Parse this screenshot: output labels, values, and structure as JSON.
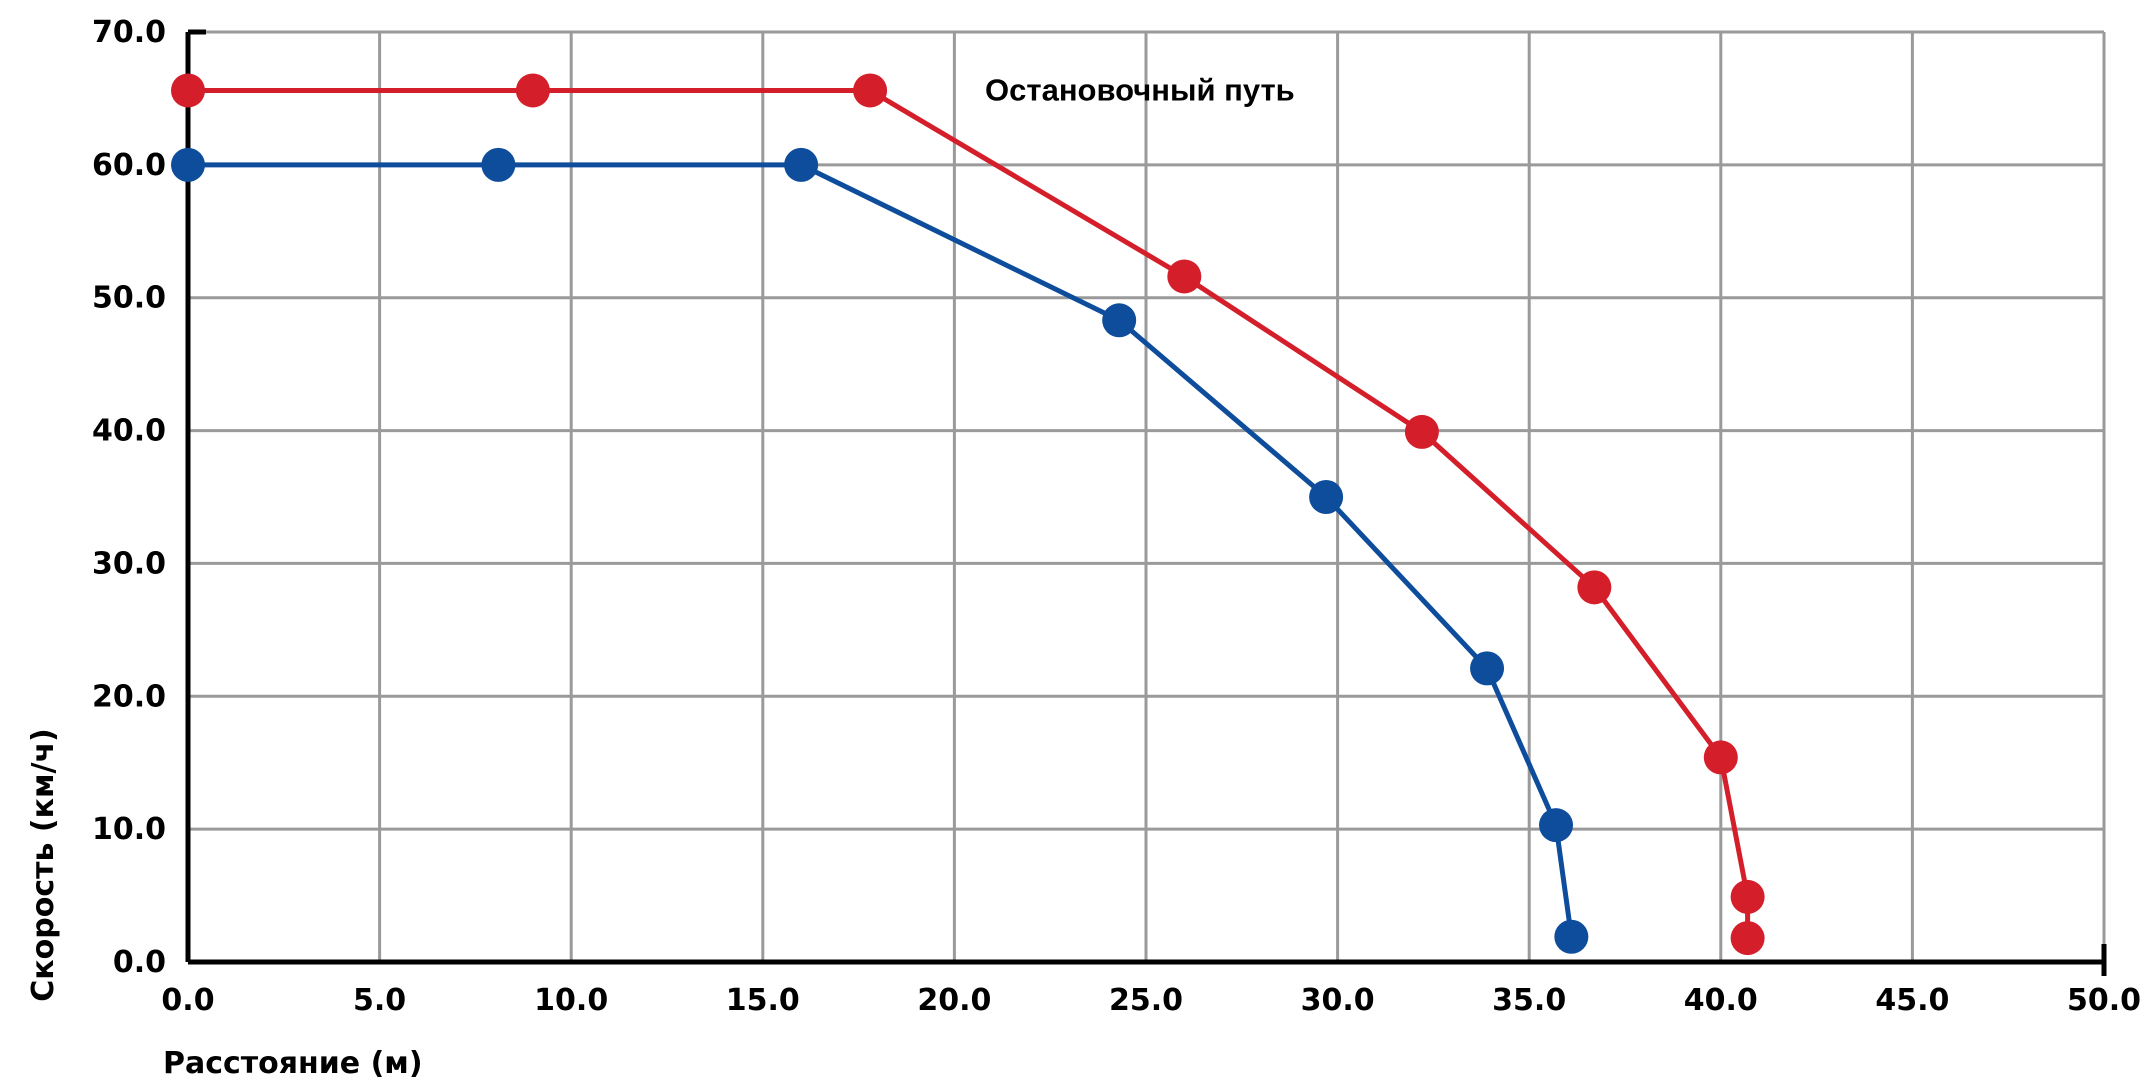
{
  "chart_data": {
    "type": "line",
    "title": "",
    "xlabel": "Расстояние (м)",
    "ylabel": "Скорость (км/ч)",
    "xlim": [
      0,
      50
    ],
    "ylim": [
      0,
      70
    ],
    "x_ticks": [
      "0.0",
      "5.0",
      "10.0",
      "15.0",
      "20.0",
      "25.0",
      "30.0",
      "35.0",
      "40.0",
      "45.0",
      "50.0"
    ],
    "y_ticks": [
      "0.0",
      "10.0",
      "20.0",
      "30.0",
      "40.0",
      "50.0",
      "60.0",
      "70.0"
    ],
    "grid": true,
    "annotations": [
      {
        "text": "Остановочный путь",
        "x": 20.8,
        "y": 65.6
      }
    ],
    "series": [
      {
        "color": "#d41f2b",
        "points": [
          [
            0.0,
            65.6
          ],
          [
            9.0,
            65.6
          ],
          [
            17.8,
            65.6
          ],
          [
            26.0,
            51.6
          ],
          [
            32.2,
            39.9
          ],
          [
            36.7,
            28.2
          ],
          [
            40.0,
            15.4
          ],
          [
            40.7,
            4.9
          ],
          [
            40.7,
            1.8
          ]
        ]
      },
      {
        "color": "#0d4d9c",
        "points": [
          [
            0.0,
            60.0
          ],
          [
            8.1,
            60.0
          ],
          [
            16.0,
            60.0
          ],
          [
            24.3,
            48.3
          ],
          [
            29.7,
            35.0
          ],
          [
            33.9,
            22.1
          ],
          [
            35.7,
            10.3
          ],
          [
            36.1,
            1.9
          ]
        ]
      }
    ]
  },
  "colors": {
    "grid": "#9a9a9a",
    "axis": "#000000"
  }
}
